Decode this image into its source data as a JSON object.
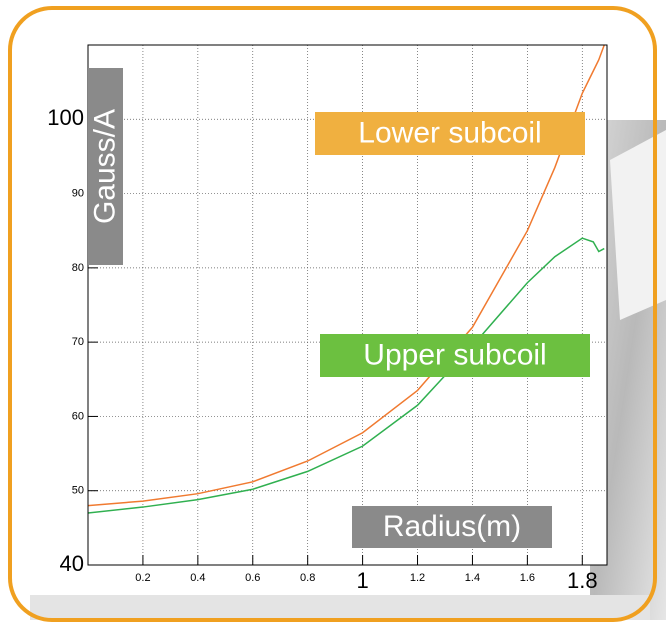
{
  "chart_data": {
    "type": "line",
    "x": [
      0,
      0.2,
      0.4,
      0.6,
      0.8,
      1.0,
      1.2,
      1.4,
      1.6,
      1.7,
      1.8,
      1.84,
      1.86,
      1.88
    ],
    "series": [
      {
        "name": "Lower subcoil",
        "color": "#f07a30",
        "values": [
          48,
          48.6,
          49.6,
          51.2,
          54,
          57.8,
          63.5,
          72,
          85,
          93.5,
          103.5,
          106.5,
          108,
          110
        ]
      },
      {
        "name": "Upper subcoil",
        "color": "#30b050",
        "values": [
          47,
          47.8,
          48.8,
          50.2,
          52.6,
          56,
          61.5,
          69.5,
          78,
          81.5,
          84,
          83.5,
          82.2,
          82.6
        ]
      }
    ],
    "annotations": [
      {
        "text": "Lower subcoil",
        "color": "#f0b040"
      },
      {
        "text": "Upper subcoil",
        "color": "#6cc040"
      },
      {
        "text": "Radius(m)",
        "color": "#8a8a8a"
      },
      {
        "text": "Gauss/A",
        "color": "#8a8a8a"
      }
    ],
    "xlim": [
      0,
      1.89
    ],
    "xticks": [
      0.2,
      0.4,
      0.6,
      0.8,
      1,
      1.2,
      1.4,
      1.6,
      1.8
    ],
    "ylim": [
      40,
      110
    ],
    "yticks": [
      40,
      50,
      60,
      70,
      80,
      90,
      100
    ],
    "grid": true
  }
}
